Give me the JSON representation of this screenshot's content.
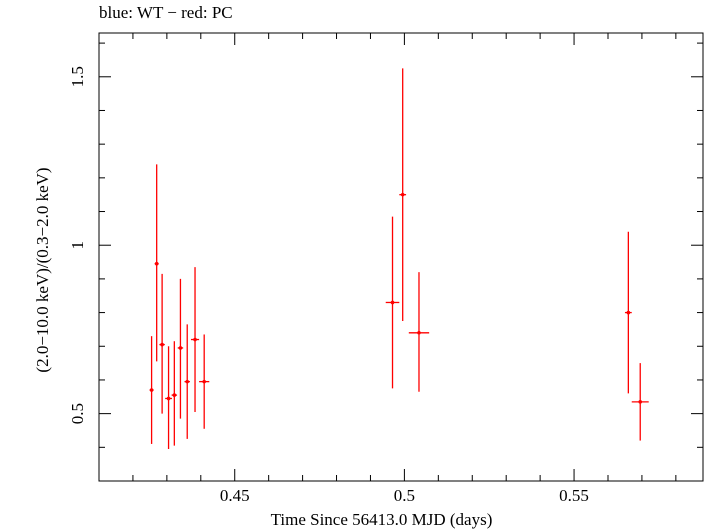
{
  "chart_data": {
    "type": "scatter",
    "title": "blue: WT − red: PC",
    "xlabel": "Time Since 56413.0 MJD (days)",
    "ylabel": "(2.0−10.0 keV)/(0.3−2.0 keV)",
    "xlim": [
      0.41,
      0.588
    ],
    "ylim": [
      0.3,
      1.63
    ],
    "xticks": [
      0.45,
      0.5,
      0.55
    ],
    "xtick_labels": [
      "0.45",
      "0.5",
      "0.55"
    ],
    "yticks": [
      0.5,
      1.0,
      1.5
    ],
    "ytick_labels": [
      "0.5",
      "1",
      "1.5"
    ],
    "grid": false,
    "series": [
      {
        "name": "PC",
        "color": "#ff0000",
        "points": [
          {
            "x": 0.4255,
            "y": 0.57,
            "xerr": 0.0006,
            "ylo": 0.41,
            "yhi": 0.73
          },
          {
            "x": 0.427,
            "y": 0.945,
            "xerr": 0.0006,
            "ylo": 0.655,
            "yhi": 1.24
          },
          {
            "x": 0.4286,
            "y": 0.705,
            "xerr": 0.0008,
            "ylo": 0.5,
            "yhi": 0.915
          },
          {
            "x": 0.4305,
            "y": 0.545,
            "xerr": 0.001,
            "ylo": 0.395,
            "yhi": 0.7
          },
          {
            "x": 0.4322,
            "y": 0.555,
            "xerr": 0.0008,
            "ylo": 0.405,
            "yhi": 0.715
          },
          {
            "x": 0.434,
            "y": 0.695,
            "xerr": 0.0008,
            "ylo": 0.485,
            "yhi": 0.9
          },
          {
            "x": 0.436,
            "y": 0.595,
            "xerr": 0.0008,
            "ylo": 0.425,
            "yhi": 0.765
          },
          {
            "x": 0.4383,
            "y": 0.72,
            "xerr": 0.0012,
            "ylo": 0.505,
            "yhi": 0.935
          },
          {
            "x": 0.441,
            "y": 0.595,
            "xerr": 0.0015,
            "ylo": 0.455,
            "yhi": 0.735
          },
          {
            "x": 0.4965,
            "y": 0.83,
            "xerr": 0.002,
            "ylo": 0.575,
            "yhi": 1.085
          },
          {
            "x": 0.4995,
            "y": 1.15,
            "xerr": 0.001,
            "ylo": 0.775,
            "yhi": 1.525
          },
          {
            "x": 0.5043,
            "y": 0.74,
            "xerr": 0.003,
            "ylo": 0.565,
            "yhi": 0.92
          },
          {
            "x": 0.566,
            "y": 0.8,
            "xerr": 0.001,
            "ylo": 0.56,
            "yhi": 1.04
          },
          {
            "x": 0.5695,
            "y": 0.535,
            "xerr": 0.0025,
            "ylo": 0.42,
            "yhi": 0.65
          }
        ]
      }
    ]
  }
}
